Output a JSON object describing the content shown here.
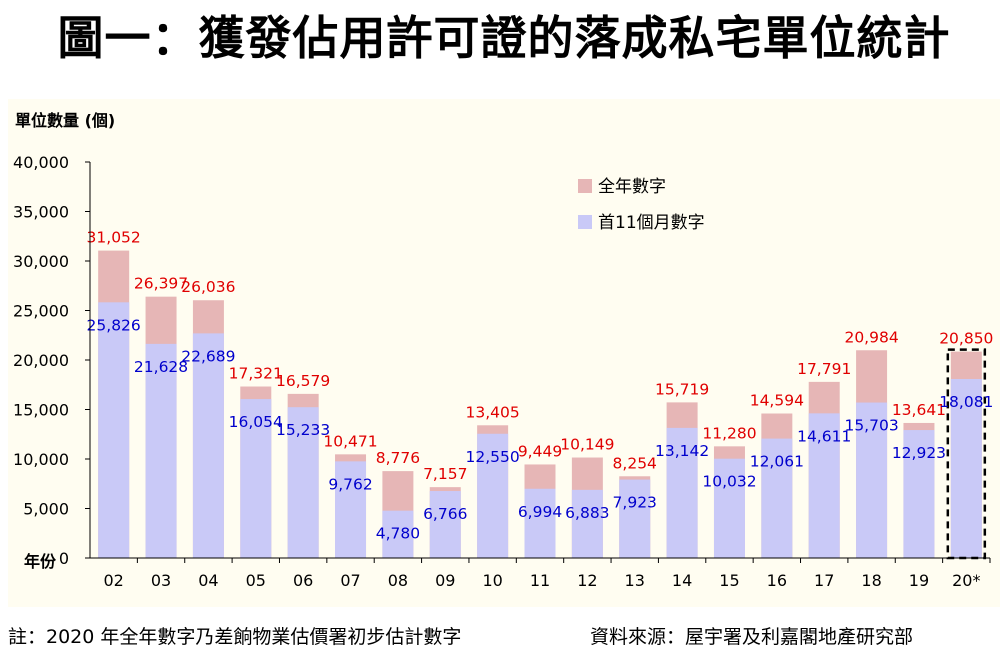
{
  "title": "圖一：獲發佔用許可證的落成私宅單位統計",
  "footer": {
    "note": "註：2020 年全年數字乃差餉物業估價署初步估計數字",
    "source": "資料來源：屋宇署及利嘉閣地產研究部"
  },
  "colors": {
    "full_year": "#e6b6b6",
    "first11": "#c9c9f7",
    "full_label": "#e00000",
    "first11_label": "#0000cc",
    "panel_bg": "#fffdf1"
  },
  "chart_data": {
    "type": "bar",
    "ylabel": "單位數量 (個)",
    "xlabel": "年份",
    "ylim": [
      0,
      40000
    ],
    "yticks": [
      0,
      5000,
      10000,
      15000,
      20000,
      25000,
      30000,
      35000,
      40000
    ],
    "ytick_labels": [
      "0",
      "5,000",
      "10,000",
      "15,000",
      "20,000",
      "25,000",
      "30,000",
      "35,000",
      "40,000"
    ],
    "legend_position": "top-right",
    "categories": [
      "02",
      "03",
      "04",
      "05",
      "06",
      "07",
      "08",
      "09",
      "10",
      "11",
      "12",
      "13",
      "14",
      "15",
      "16",
      "17",
      "18",
      "19",
      "20*"
    ],
    "series": [
      {
        "name": "全年數字",
        "values": [
          31052,
          26397,
          26036,
          17321,
          16579,
          10471,
          8776,
          7157,
          13405,
          9449,
          10149,
          8254,
          15719,
          11280,
          14594,
          17791,
          20984,
          13641,
          20850
        ],
        "labels": [
          "31,052",
          "26,397",
          "26,036",
          "17,321",
          "16,579",
          "10,471",
          "8,776",
          "7,157",
          "13,405",
          "9,449",
          "10,149",
          "8,254",
          "15,719",
          "11,280",
          "14,594",
          "17,791",
          "20,984",
          "13,641",
          "20,850"
        ]
      },
      {
        "name": "首11個月數字",
        "values": [
          25826,
          21628,
          22689,
          16054,
          15233,
          9762,
          4780,
          6766,
          12550,
          6994,
          6883,
          7923,
          13142,
          10032,
          12061,
          14611,
          15703,
          12923,
          18081
        ],
        "labels": [
          "25,826",
          "21,628",
          "22,689",
          "16,054",
          "15,233",
          "9,762",
          "4,780",
          "6,766",
          "12,550",
          "6,994",
          "6,883",
          "7,923",
          "13,142",
          "10,032",
          "12,061",
          "14,611",
          "15,703",
          "12,923",
          "18,081"
        ]
      }
    ],
    "estimate_category": "20*"
  }
}
